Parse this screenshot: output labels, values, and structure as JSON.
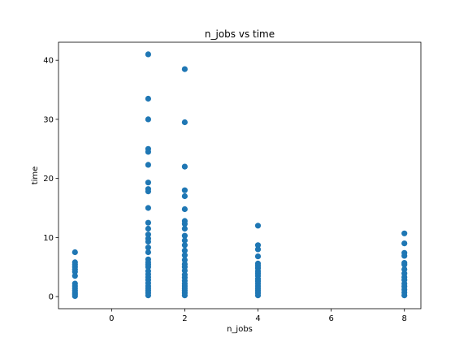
{
  "chart_data": {
    "type": "scatter",
    "title": "n_jobs vs time",
    "xlabel": "n_jobs",
    "ylabel": "time",
    "xlim": [
      -1.45,
      8.45
    ],
    "ylim": [
      -2.05,
      43.05
    ],
    "xticks": [
      0,
      2,
      4,
      6,
      8
    ],
    "yticks": [
      0,
      10,
      20,
      30,
      40
    ],
    "grid": false,
    "marker_color": "#1f77b4",
    "series": [
      {
        "points": [
          {
            "x": -1,
            "y": 7.5
          },
          {
            "x": -1,
            "y": 5.8
          },
          {
            "x": -1,
            "y": 5.4
          },
          {
            "x": -1,
            "y": 5.0
          },
          {
            "x": -1,
            "y": 4.6
          },
          {
            "x": -1,
            "y": 4.2
          },
          {
            "x": -1,
            "y": 3.5
          },
          {
            "x": -1,
            "y": 2.2
          },
          {
            "x": -1,
            "y": 1.8
          },
          {
            "x": -1,
            "y": 1.4
          },
          {
            "x": -1,
            "y": 1.0
          },
          {
            "x": -1,
            "y": 0.7
          },
          {
            "x": -1,
            "y": 0.4
          },
          {
            "x": -1,
            "y": 0.1
          },
          {
            "x": 1,
            "y": 41.0
          },
          {
            "x": 1,
            "y": 33.5
          },
          {
            "x": 1,
            "y": 30.0
          },
          {
            "x": 1,
            "y": 25.0
          },
          {
            "x": 1,
            "y": 24.5
          },
          {
            "x": 1,
            "y": 22.3
          },
          {
            "x": 1,
            "y": 19.3
          },
          {
            "x": 1,
            "y": 18.2
          },
          {
            "x": 1,
            "y": 17.8
          },
          {
            "x": 1,
            "y": 15.0
          },
          {
            "x": 1,
            "y": 12.5
          },
          {
            "x": 1,
            "y": 11.5
          },
          {
            "x": 1,
            "y": 10.5
          },
          {
            "x": 1,
            "y": 9.8
          },
          {
            "x": 1,
            "y": 9.3
          },
          {
            "x": 1,
            "y": 8.3
          },
          {
            "x": 1,
            "y": 7.5
          },
          {
            "x": 1,
            "y": 6.3
          },
          {
            "x": 1,
            "y": 5.8
          },
          {
            "x": 1,
            "y": 5.4
          },
          {
            "x": 1,
            "y": 5.0
          },
          {
            "x": 1,
            "y": 4.3
          },
          {
            "x": 1,
            "y": 3.8
          },
          {
            "x": 1,
            "y": 3.3
          },
          {
            "x": 1,
            "y": 2.8
          },
          {
            "x": 1,
            "y": 2.3
          },
          {
            "x": 1,
            "y": 1.8
          },
          {
            "x": 1,
            "y": 1.4
          },
          {
            "x": 1,
            "y": 1.0
          },
          {
            "x": 1,
            "y": 0.6
          },
          {
            "x": 1,
            "y": 0.2
          },
          {
            "x": 2,
            "y": 38.5
          },
          {
            "x": 2,
            "y": 29.5
          },
          {
            "x": 2,
            "y": 22.0
          },
          {
            "x": 2,
            "y": 18.0
          },
          {
            "x": 2,
            "y": 17.0
          },
          {
            "x": 2,
            "y": 14.8
          },
          {
            "x": 2,
            "y": 12.8
          },
          {
            "x": 2,
            "y": 12.3
          },
          {
            "x": 2,
            "y": 11.5
          },
          {
            "x": 2,
            "y": 10.3
          },
          {
            "x": 2,
            "y": 9.5
          },
          {
            "x": 2,
            "y": 8.7
          },
          {
            "x": 2,
            "y": 7.8
          },
          {
            "x": 2,
            "y": 7.0
          },
          {
            "x": 2,
            "y": 6.2
          },
          {
            "x": 2,
            "y": 5.5
          },
          {
            "x": 2,
            "y": 5.0
          },
          {
            "x": 2,
            "y": 4.4
          },
          {
            "x": 2,
            "y": 3.7
          },
          {
            "x": 2,
            "y": 3.2
          },
          {
            "x": 2,
            "y": 2.7
          },
          {
            "x": 2,
            "y": 2.2
          },
          {
            "x": 2,
            "y": 1.8
          },
          {
            "x": 2,
            "y": 1.4
          },
          {
            "x": 2,
            "y": 1.0
          },
          {
            "x": 2,
            "y": 0.6
          },
          {
            "x": 2,
            "y": 0.2
          },
          {
            "x": 4,
            "y": 12.0
          },
          {
            "x": 4,
            "y": 8.7
          },
          {
            "x": 4,
            "y": 8.0
          },
          {
            "x": 4,
            "y": 6.8
          },
          {
            "x": 4,
            "y": 5.6
          },
          {
            "x": 4,
            "y": 5.2
          },
          {
            "x": 4,
            "y": 4.8
          },
          {
            "x": 4,
            "y": 4.3
          },
          {
            "x": 4,
            "y": 3.9
          },
          {
            "x": 4,
            "y": 3.5
          },
          {
            "x": 4,
            "y": 3.0
          },
          {
            "x": 4,
            "y": 2.6
          },
          {
            "x": 4,
            "y": 2.2
          },
          {
            "x": 4,
            "y": 1.8
          },
          {
            "x": 4,
            "y": 1.4
          },
          {
            "x": 4,
            "y": 1.0
          },
          {
            "x": 4,
            "y": 0.6
          },
          {
            "x": 4,
            "y": 0.2
          },
          {
            "x": 8,
            "y": 10.7
          },
          {
            "x": 8,
            "y": 9.0
          },
          {
            "x": 8,
            "y": 7.4
          },
          {
            "x": 8,
            "y": 6.9
          },
          {
            "x": 8,
            "y": 5.7
          },
          {
            "x": 8,
            "y": 5.4
          },
          {
            "x": 8,
            "y": 4.6
          },
          {
            "x": 8,
            "y": 3.9
          },
          {
            "x": 8,
            "y": 3.3
          },
          {
            "x": 8,
            "y": 2.8
          },
          {
            "x": 8,
            "y": 2.2
          },
          {
            "x": 8,
            "y": 1.7
          },
          {
            "x": 8,
            "y": 1.2
          },
          {
            "x": 8,
            "y": 0.7
          },
          {
            "x": 8,
            "y": 0.2
          }
        ]
      }
    ]
  }
}
